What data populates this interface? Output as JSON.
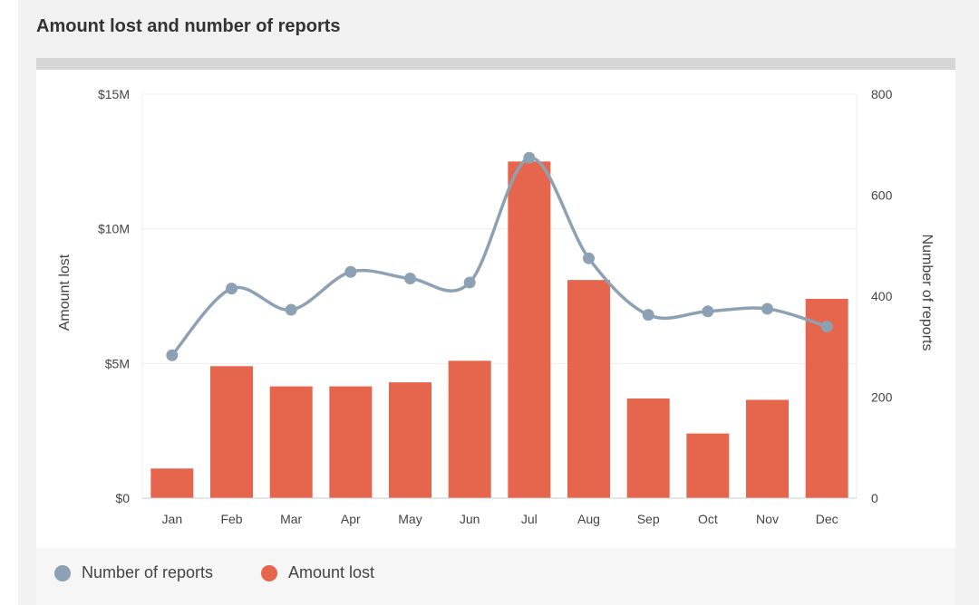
{
  "title": "Amount lost and number of reports",
  "colors": {
    "bar": "#e5664d",
    "line": "#8da1b5",
    "grid": "#eeeeee",
    "text": "#444444",
    "axis": "#cccccc"
  },
  "legend": {
    "reports_label": "Number of reports",
    "amount_label": "Amount lost"
  },
  "chart_data": {
    "type": "bar+line",
    "title": "Amount lost and number of reports",
    "categories": [
      "Jan",
      "Feb",
      "Mar",
      "Apr",
      "May",
      "Jun",
      "Jul",
      "Aug",
      "Sep",
      "Oct",
      "Nov",
      "Dec"
    ],
    "y_left": {
      "label": "Amount lost",
      "range": [
        0,
        15
      ],
      "ticks": [
        0,
        5,
        10,
        15
      ],
      "tick_labels": [
        "$0",
        "$5M",
        "$10M",
        "$15M"
      ]
    },
    "y_right": {
      "label": "Number of reports",
      "range": [
        0,
        800
      ],
      "ticks": [
        0,
        200,
        400,
        600,
        800
      ],
      "tick_labels": [
        "0",
        "200",
        "400",
        "600",
        "800"
      ]
    },
    "series": [
      {
        "name": "Amount lost",
        "type": "bar",
        "axis": "left",
        "unit": "$M",
        "values": [
          1.1,
          4.9,
          4.15,
          4.15,
          4.3,
          5.1,
          12.5,
          8.1,
          3.7,
          2.4,
          3.65,
          7.4
        ]
      },
      {
        "name": "Number of reports",
        "type": "line",
        "axis": "right",
        "values": [
          283,
          415,
          373,
          448,
          435,
          427,
          674,
          475,
          363,
          370,
          375,
          340
        ]
      }
    ]
  }
}
